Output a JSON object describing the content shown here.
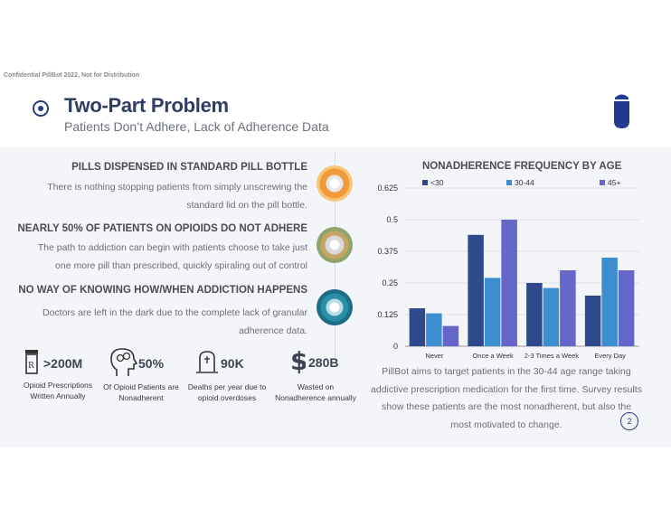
{
  "confidential": "Confidential PillBot 2022, Not for Distribution",
  "title": "Two-Part Problem",
  "subtitle": "Patients Don’t Adhere, Lack of Adherence Data",
  "sections": [
    {
      "heading": "PILLS DISPENSED IN STANDARD PILL BOTTLE",
      "body": "There is nothing stopping patients from simply unscrewing the standard lid on the pill bottle."
    },
    {
      "heading": "NEARLY 50% OF PATIENTS ON OPIOIDS DO NOT ADHERE",
      "body": "The path to addiction can begin with patients choose to take just one more pill than prescribed, quickly spiraling out of control"
    },
    {
      "heading": "NO WAY OF KNOWING HOW/WHEN ADDICTION HAPPENS",
      "body": "Doctors are left in the dark due to the complete lack of granular adherence data."
    }
  ],
  "stats": [
    {
      "icon": "prescription-icon",
      "value": ">200M",
      "label": "Opioid Prescriptions Written Annually"
    },
    {
      "icon": "head-pills-icon",
      "value": "50%",
      "label": "Of Opioid Patients are Nonadherent"
    },
    {
      "icon": "gravestone-icon",
      "value": "90K",
      "label": "Deaths per year due to opioid overdoses"
    },
    {
      "icon": "dollar-icon",
      "value": "280B",
      "label": "Wasted on Nonadherence annually"
    }
  ],
  "caption": "PillBot aims to target patients in the 30-44 age range taking addictive prescription medication for the first time. Survey results show these patients are the most nonadherent, but also the most motivated to change.",
  "page_number": "2",
  "colors": {
    "navy": "#2d3e77",
    "series_lt30": "#2f4a8a",
    "series_30_44": "#3d8ed0",
    "series_45plus": "#6566c9"
  },
  "chart_data": {
    "type": "bar",
    "title": "NONADHERENCE FREQUENCY BY AGE",
    "categories": [
      "Never",
      "Once a Week",
      "2-3 Times a Week",
      "Every Day"
    ],
    "series": [
      {
        "name": "<30",
        "values": [
          0.15,
          0.44,
          0.25,
          0.2
        ]
      },
      {
        "name": "30-44",
        "values": [
          0.13,
          0.27,
          0.23,
          0.35
        ]
      },
      {
        "name": "45+",
        "values": [
          0.08,
          0.5,
          0.3,
          0.3
        ]
      }
    ],
    "yticks": [
      "0",
      "0.125",
      "0.25",
      "0.375",
      "0.5",
      "0.625"
    ],
    "ylim": [
      0,
      0.625
    ],
    "grid": true,
    "legend": "top"
  }
}
